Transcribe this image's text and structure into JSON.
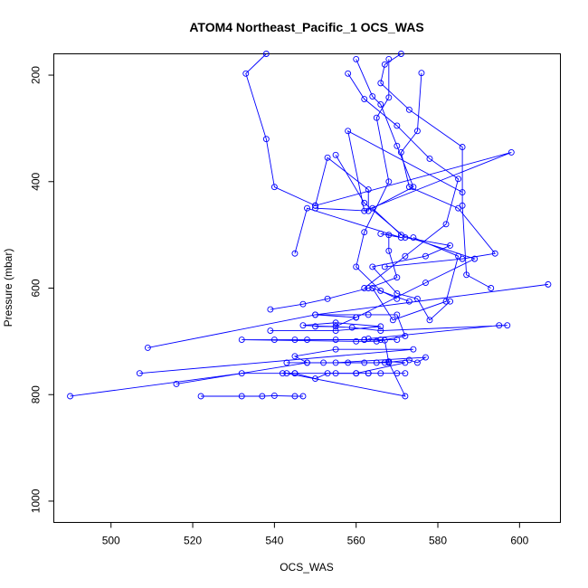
{
  "chart_data": {
    "type": "line",
    "title": "ATOM4 Northeast_Pacific_1 OCS_WAS",
    "xlabel": "OCS_WAS",
    "ylabel": "Pressure (mbar)",
    "xlim": [
      486,
      610
    ],
    "ylim": [
      1040,
      160
    ],
    "y_axis_reversed": true,
    "x_ticks": [
      500,
      520,
      540,
      560,
      580,
      600
    ],
    "y_ticks": [
      200,
      400,
      600,
      800,
      1000
    ],
    "series_color": "#0000ff",
    "marker": "open-circle",
    "grid": false,
    "legend": "none",
    "series": [
      {
        "values": [
          [
            538,
            160
          ],
          [
            533,
            197
          ],
          [
            538,
            320
          ],
          [
            540,
            410
          ],
          [
            550,
            445
          ]
        ]
      },
      {
        "values": [
          [
            550,
            450
          ],
          [
            563,
            455
          ],
          [
            563,
            415
          ],
          [
            553,
            355
          ],
          [
            550,
            445
          ],
          [
            598,
            345
          ],
          [
            562,
            455
          ],
          [
            558,
            305
          ],
          [
            586,
            420
          ]
        ]
      },
      {
        "values": [
          [
            558,
            197
          ],
          [
            562,
            245
          ],
          [
            570,
            295
          ],
          [
            578,
            357
          ],
          [
            585,
            395
          ],
          [
            582,
            480
          ],
          [
            572,
            540
          ],
          [
            562,
            600
          ]
        ]
      },
      {
        "values": [
          [
            571,
            160
          ],
          [
            567,
            180
          ],
          [
            566,
            215
          ],
          [
            573,
            265
          ],
          [
            586,
            335
          ],
          [
            586,
            445
          ],
          [
            587,
            575
          ],
          [
            593,
            600
          ]
        ]
      },
      {
        "values": [
          [
            576,
            196
          ],
          [
            575,
            305
          ],
          [
            571,
            345
          ],
          [
            573,
            410
          ],
          [
            585,
            450
          ],
          [
            594,
            535
          ],
          [
            586,
            545
          ],
          [
            567,
            560
          ]
        ]
      },
      {
        "values": [
          [
            568,
            170
          ],
          [
            568,
            242
          ],
          [
            565,
            280
          ],
          [
            568,
            400
          ],
          [
            562,
            495
          ],
          [
            560,
            560
          ],
          [
            566,
            605
          ],
          [
            570,
            620
          ]
        ]
      },
      {
        "values": [
          [
            560,
            170
          ],
          [
            564,
            240
          ],
          [
            566,
            255
          ],
          [
            570,
            333
          ],
          [
            574,
            410
          ],
          [
            564,
            450
          ],
          [
            571,
            500
          ],
          [
            589,
            545
          ],
          [
            577,
            590
          ],
          [
            560,
            655
          ]
        ]
      },
      {
        "values": [
          [
            545,
            535
          ],
          [
            548,
            450
          ],
          [
            571,
            505
          ],
          [
            566,
            498
          ],
          [
            568,
            500
          ],
          [
            568,
            530
          ],
          [
            570,
            580
          ],
          [
            563,
            600
          ],
          [
            553,
            620
          ],
          [
            547,
            630
          ],
          [
            539,
            640
          ]
        ]
      },
      {
        "values": [
          [
            555,
            350
          ],
          [
            562,
            440
          ],
          [
            572,
            505
          ],
          [
            583,
            520
          ],
          [
            577,
            540
          ],
          [
            564,
            560
          ],
          [
            570,
            610
          ],
          [
            575,
            620
          ],
          [
            578,
            660
          ],
          [
            583,
            625
          ]
        ]
      },
      {
        "values": [
          [
            574,
            505
          ],
          [
            585,
            540
          ],
          [
            582,
            625
          ],
          [
            569,
            660
          ],
          [
            564,
            600
          ],
          [
            573,
            625
          ]
        ]
      },
      {
        "values": [
          [
            607,
            593
          ],
          [
            550,
            650
          ],
          [
            560,
            655
          ],
          [
            555,
            672
          ],
          [
            550,
            672
          ]
        ]
      },
      {
        "values": [
          [
            539,
            680
          ],
          [
            555,
            680
          ],
          [
            566,
            672
          ],
          [
            555,
            665
          ],
          [
            547,
            670
          ],
          [
            559,
            674
          ],
          [
            566,
            680
          ],
          [
            597,
            670
          ],
          [
            595,
            670
          ],
          [
            563,
            695
          ]
        ]
      },
      {
        "values": [
          [
            509,
            712
          ],
          [
            550,
            650
          ],
          [
            563,
            650
          ],
          [
            570,
            650
          ],
          [
            572,
            690
          ],
          [
            565,
            700
          ],
          [
            560,
            700
          ],
          [
            532,
            697
          ],
          [
            540,
            697
          ],
          [
            545,
            697
          ],
          [
            555,
            697
          ],
          [
            562,
            697
          ],
          [
            566,
            697
          ],
          [
            570,
            697
          ]
        ]
      },
      {
        "values": [
          [
            507,
            760
          ],
          [
            574,
            715
          ],
          [
            555,
            715
          ],
          [
            545,
            728
          ],
          [
            548,
            740
          ],
          [
            552,
            740
          ],
          [
            562,
            740
          ],
          [
            567,
            740
          ],
          [
            573,
            735
          ],
          [
            575,
            740
          ],
          [
            577,
            730
          ],
          [
            555,
            740
          ],
          [
            543,
            740
          ]
        ]
      },
      {
        "values": [
          [
            516,
            780
          ],
          [
            548,
            740
          ],
          [
            558,
            740
          ],
          [
            565,
            740
          ],
          [
            568,
            738
          ],
          [
            572,
            740
          ],
          [
            560,
            760
          ],
          [
            555,
            760
          ],
          [
            545,
            760
          ],
          [
            542,
            760
          ]
        ]
      },
      {
        "values": [
          [
            490,
            803
          ],
          [
            532,
            760
          ],
          [
            545,
            760
          ],
          [
            550,
            770
          ],
          [
            553,
            760
          ],
          [
            560,
            760
          ],
          [
            563,
            760
          ],
          [
            566,
            760
          ],
          [
            570,
            760
          ],
          [
            572,
            760
          ],
          [
            563,
            760
          ]
        ]
      },
      {
        "values": [
          [
            522,
            803
          ],
          [
            532,
            803
          ],
          [
            537,
            803
          ],
          [
            540,
            802
          ],
          [
            545,
            803
          ],
          [
            547,
            803
          ]
        ]
      },
      {
        "values": [
          [
            543,
            760
          ],
          [
            572,
            803
          ],
          [
            568,
            740
          ],
          [
            567,
            698
          ],
          [
            562,
            697
          ],
          [
            548,
            697
          ]
        ]
      }
    ]
  }
}
